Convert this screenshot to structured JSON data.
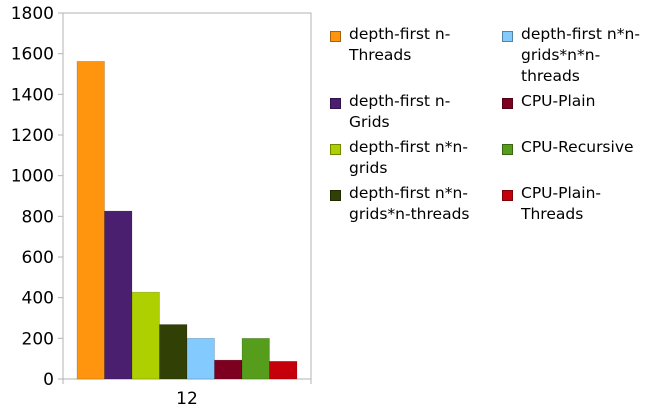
{
  "chart_data": {
    "type": "bar",
    "categories": [
      "12"
    ],
    "ylim": [
      0,
      1800
    ],
    "yticks": [
      0,
      200,
      400,
      600,
      800,
      1000,
      1200,
      1400,
      1600,
      1800
    ],
    "grid": false,
    "legend_placement": "right",
    "series": [
      {
        "name": "depth-first n-\nThreads",
        "color": "#ff950e",
        "values": [
          1562
        ]
      },
      {
        "name": "depth-first n-\nGrids",
        "color": "#4b1f6f",
        "values": [
          826
        ]
      },
      {
        "name": "depth-first n*n-\ngrids",
        "color": "#aecf00",
        "values": [
          427
        ]
      },
      {
        "name": "depth-first n*n-\ngrids*n-threads",
        "color": "#314004",
        "values": [
          268
        ]
      },
      {
        "name": "depth-first n*n-\ngrids*n*n-\nthreads",
        "color": "#83caff",
        "values": [
          200
        ]
      },
      {
        "name": "CPU-Plain",
        "color": "#7e0021",
        "values": [
          93
        ]
      },
      {
        "name": "CPU-Recursive",
        "color": "#579d1c",
        "values": [
          200
        ]
      },
      {
        "name": "CPU-Plain-\nThreads",
        "color": "#c5000b",
        "values": [
          87
        ]
      }
    ]
  }
}
